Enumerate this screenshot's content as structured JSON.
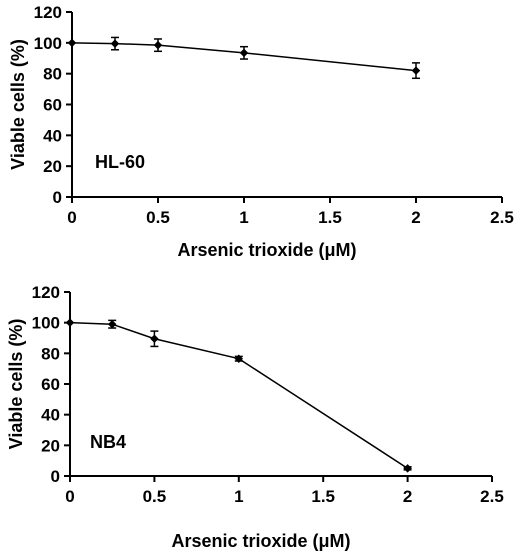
{
  "chart_data": [
    {
      "type": "line",
      "panel_label": "HL-60",
      "xlabel": "Arsenic trioxide (μM)",
      "ylabel": "Viable cells (%)",
      "xlim": [
        0,
        2.5
      ],
      "ylim": [
        0,
        120
      ],
      "xticks": [
        "0",
        "0.5",
        "1",
        "1.5",
        "2",
        "2.5"
      ],
      "yticks": [
        "0",
        "20",
        "40",
        "60",
        "80",
        "100",
        "120"
      ],
      "grid": false,
      "series": [
        {
          "x": [
            0,
            0.25,
            0.5,
            1,
            2
          ],
          "y": [
            100,
            99.5,
            98.5,
            93.5,
            82
          ],
          "error": [
            0,
            4,
            4,
            4,
            5
          ]
        }
      ]
    },
    {
      "type": "line",
      "panel_label": "NB4",
      "xlabel": "Arsenic trioxide (μM)",
      "ylabel": "Viable cells (%)",
      "xlim": [
        0,
        2.5
      ],
      "ylim": [
        0,
        120
      ],
      "xticks": [
        "0",
        "0.5",
        "1",
        "1.5",
        "2",
        "2.5"
      ],
      "yticks": [
        "0",
        "20",
        "40",
        "60",
        "80",
        "100",
        "120"
      ],
      "grid": false,
      "series": [
        {
          "x": [
            0,
            0.25,
            0.5,
            1,
            2
          ],
          "y": [
            100,
            99,
            89.5,
            76.5,
            5
          ],
          "error": [
            0,
            2.5,
            5,
            1.5,
            1
          ]
        }
      ]
    }
  ]
}
